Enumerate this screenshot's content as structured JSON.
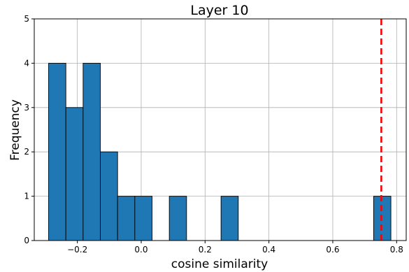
{
  "chart_data": {
    "type": "bar",
    "title": "Layer 10",
    "xlabel": "cosine similarity",
    "ylabel": "Frequency",
    "xlim": [
      -0.335,
      0.83
    ],
    "ylim": [
      0,
      5
    ],
    "xticks": [
      -0.2,
      0.0,
      0.2,
      0.4,
      0.6,
      0.8
    ],
    "xtick_labels": [
      "−0.2",
      "0.0",
      "0.2",
      "0.4",
      "0.6",
      "0.8"
    ],
    "yticks": [
      0,
      1,
      2,
      3,
      4,
      5
    ],
    "ytick_labels": [
      "0",
      "1",
      "2",
      "3",
      "4",
      "5"
    ],
    "grid": true,
    "bar_color": "#1f77b4",
    "bar_edge_color": "#000000",
    "bins": [
      {
        "x0": -0.29,
        "x1": -0.236,
        "count": 4
      },
      {
        "x0": -0.236,
        "x1": -0.182,
        "count": 3
      },
      {
        "x0": -0.182,
        "x1": -0.128,
        "count": 4
      },
      {
        "x0": -0.128,
        "x1": -0.074,
        "count": 2
      },
      {
        "x0": -0.074,
        "x1": -0.02,
        "count": 1
      },
      {
        "x0": -0.02,
        "x1": 0.034,
        "count": 1
      },
      {
        "x0": 0.088,
        "x1": 0.142,
        "count": 1
      },
      {
        "x0": 0.25,
        "x1": 0.304,
        "count": 1
      },
      {
        "x0": 0.728,
        "x1": 0.782,
        "count": 1
      }
    ],
    "reference_line": {
      "x": 0.752,
      "color": "#ff0000",
      "style": "dashed"
    }
  }
}
